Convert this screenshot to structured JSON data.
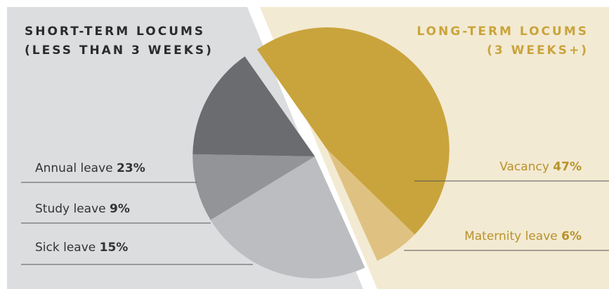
{
  "chart_data": {
    "type": "pie",
    "groups": [
      {
        "title": [
          "SHORT-TERM LOCUMS",
          "(LESS THAN 3 WEEKS)"
        ],
        "categories": [
          "Annual leave",
          "Study leave",
          "Sick leave"
        ],
        "values": [
          23,
          9,
          15
        ],
        "value_labels": [
          "23%",
          "9%",
          "15%"
        ],
        "colors": [
          "#bcbdc0",
          "#939497",
          "#6b6c6f"
        ]
      },
      {
        "title": [
          "LONG-TERM LOCUMS",
          "(3 WEEKS+)"
        ],
        "categories": [
          "Vacancy",
          "Maternity leave"
        ],
        "values": [
          47,
          6
        ],
        "value_labels": [
          "47%",
          "6%"
        ],
        "colors": [
          "#c9a43c",
          "#dfc282"
        ]
      }
    ]
  }
}
